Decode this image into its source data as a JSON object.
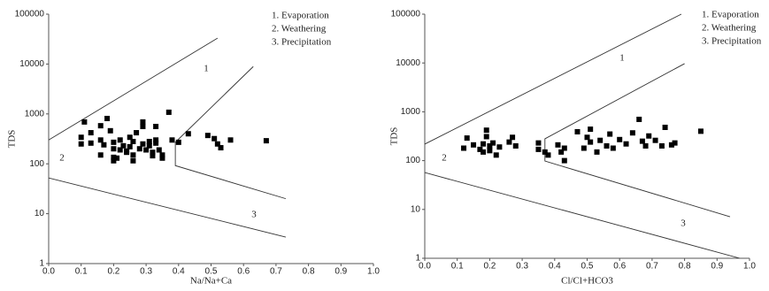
{
  "chart_data": [
    {
      "type": "scatter",
      "x_label": "Na/Na+Ca",
      "y_label": "TDS",
      "log_y": true,
      "xlim": [
        0,
        1
      ],
      "ylim": [
        1,
        100000
      ],
      "xticks": [
        {
          "value": 0,
          "label": "0.0"
        },
        0.1,
        0.2,
        0.3,
        0.4,
        0.5,
        0.6,
        0.7,
        0.8,
        0.9,
        {
          "value": 1,
          "label": "1.0"
        }
      ],
      "yticks": [
        1,
        10,
        100,
        1000,
        10000,
        100000
      ],
      "annotations": [
        "1. Evaporation",
        "2. Weathering",
        "3. Precipitation"
      ],
      "region_labels": [
        "1",
        "2",
        "3"
      ],
      "boundaries": [
        {
          "x": [
            0,
            0.52
          ],
          "y": [
            300,
            33000
          ]
        },
        {
          "x": [
            0.63,
            0.39,
            0.39,
            0.73
          ],
          "y": [
            8900,
            270,
            92,
            20
          ]
        },
        {
          "x": [
            0,
            0.73
          ],
          "y": [
            52,
            3.4
          ]
        }
      ],
      "series": [
        {
          "color": "#000000",
          "x": [
            0.11,
            0.1,
            0.1,
            0.13,
            0.13,
            0.16,
            0.16,
            0.17,
            0.16,
            0.18,
            0.19,
            0.2,
            0.2,
            0.2,
            0.2,
            0.22,
            0.22,
            0.23,
            0.24,
            0.25,
            0.25,
            0.26,
            0.26,
            0.27,
            0.28,
            0.29,
            0.29,
            0.29,
            0.3,
            0.31,
            0.31,
            0.32,
            0.33,
            0.33,
            0.33,
            0.34,
            0.32,
            0.37,
            0.38,
            0.4,
            0.43,
            0.49,
            0.51,
            0.52,
            0.53,
            0.56,
            0.67,
            0.21,
            0.24,
            0.26,
            0.35,
            0.35
          ],
          "values": [
            690,
            340,
            250,
            420,
            260,
            580,
            300,
            240,
            150,
            810,
            460,
            270,
            200,
            115,
            135,
            190,
            300,
            230,
            170,
            340,
            220,
            150,
            280,
            420,
            200,
            560,
            690,
            250,
            190,
            280,
            230,
            170,
            260,
            560,
            300,
            190,
            145,
            1080,
            300,
            270,
            400,
            370,
            320,
            250,
            210,
            300,
            290,
            130,
            180,
            115,
            130,
            150
          ]
        }
      ]
    },
    {
      "type": "scatter",
      "x_label": "Cl/Cl+HCO3",
      "y_label": "TDS",
      "log_y": true,
      "xlim": [
        0,
        1
      ],
      "ylim": [
        1,
        100000
      ],
      "xticks": [
        {
          "value": 0,
          "label": "0.0"
        },
        0.1,
        0.2,
        0.3,
        0.4,
        0.5,
        0.6,
        0.7,
        0.8,
        0.9,
        {
          "value": 1,
          "label": "1.0"
        }
      ],
      "yticks": [
        1,
        10,
        100,
        1000,
        10000,
        100000
      ],
      "annotations": [
        "1. Evaporation",
        "2. Weathering",
        "3. Precipitation"
      ],
      "region_labels": [
        "1",
        "2",
        "3"
      ],
      "boundaries": [
        {
          "x": [
            0,
            0.79
          ],
          "y": [
            218,
            100000
          ]
        },
        {
          "x": [
            0.8,
            0.37,
            0.37,
            0.94
          ],
          "y": [
            9700,
            280,
            98,
            7.1
          ]
        },
        {
          "x": [
            0,
            0.97
          ],
          "y": [
            57,
            1
          ]
        }
      ],
      "series": [
        {
          "color": "#000000",
          "x": [
            0.12,
            0.13,
            0.15,
            0.17,
            0.18,
            0.18,
            0.19,
            0.19,
            0.2,
            0.2,
            0.21,
            0.22,
            0.23,
            0.26,
            0.27,
            0.28,
            0.35,
            0.35,
            0.37,
            0.38,
            0.41,
            0.42,
            0.43,
            0.43,
            0.47,
            0.49,
            0.5,
            0.51,
            0.51,
            0.53,
            0.54,
            0.56,
            0.57,
            0.58,
            0.6,
            0.62,
            0.64,
            0.66,
            0.67,
            0.68,
            0.69,
            0.71,
            0.73,
            0.74,
            0.77,
            0.76,
            0.85
          ],
          "values": [
            180,
            290,
            210,
            170,
            220,
            150,
            420,
            310,
            200,
            160,
            230,
            130,
            190,
            240,
            300,
            200,
            170,
            230,
            150,
            130,
            210,
            150,
            100,
            180,
            390,
            180,
            300,
            440,
            240,
            150,
            260,
            200,
            350,
            180,
            270,
            220,
            370,
            700,
            250,
            200,
            320,
            260,
            200,
            480,
            230,
            210,
            400
          ]
        }
      ]
    }
  ]
}
